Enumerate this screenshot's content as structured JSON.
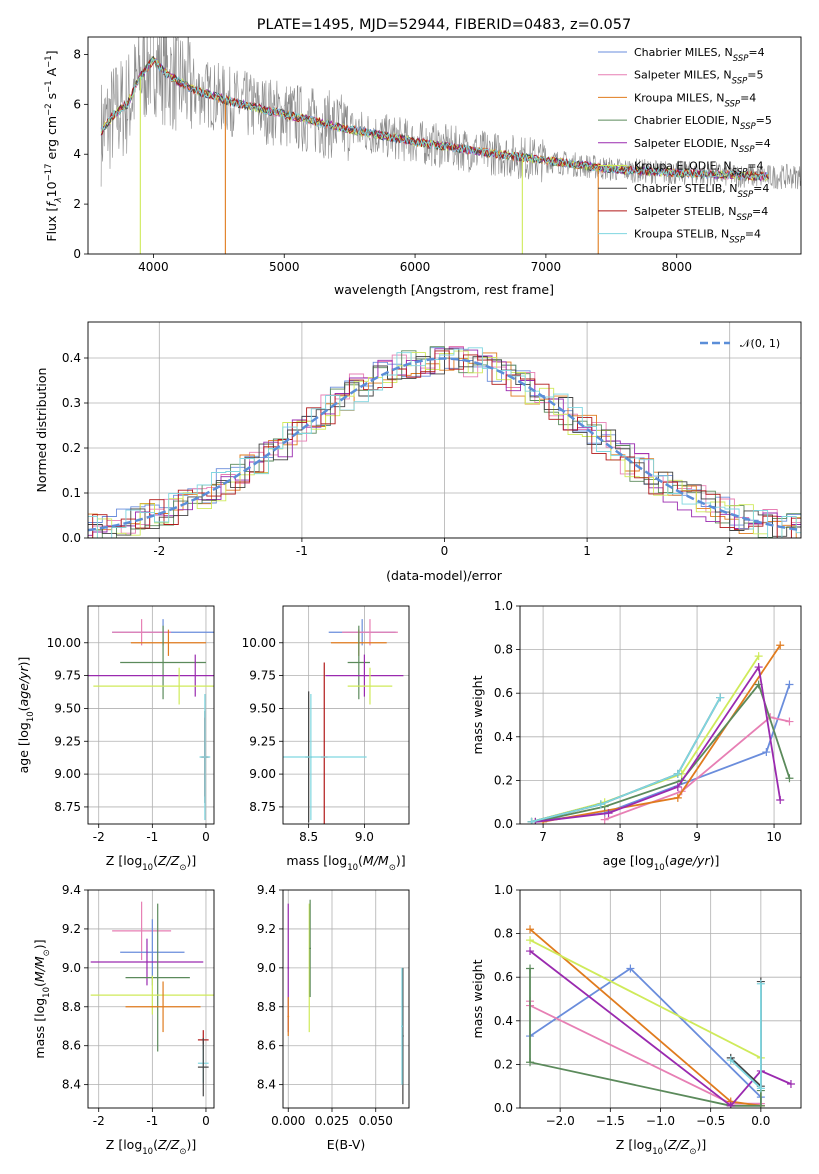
{
  "colors": {
    "chabrier_miles": "#6a8ddc",
    "salpeter_miles": "#e77fb4",
    "kroupa_miles": "#e07b1e",
    "chabrier_elodie": "#5b8a5b",
    "salpeter_elodie": "#9a2aaf",
    "kroupa_elodie": "#cfea5a",
    "chabrier_stelib": "#444444",
    "salpeter_stelib": "#b01818",
    "kroupa_stelib": "#7fd6e0",
    "data": "#8a8a8a"
  },
  "chart_data": [
    {
      "id": "spectrum",
      "type": "line",
      "title": "PLATE=1495, MJD=52944, FIBERID=0483, z=0.057",
      "xlabel": "wavelength [Angstrom, rest frame]",
      "ylabel": "Flux [f_λ10^-17 erg cm^-2 s^-1 A^-1]",
      "xlim": [
        3500,
        8950
      ],
      "ylim": [
        0,
        8.7
      ],
      "xticks": [
        4000,
        5000,
        6000,
        7000,
        8000
      ],
      "yticks": [
        0,
        2,
        4,
        6,
        8
      ],
      "legend": "top-right",
      "legend_entries": [
        {
          "key": "chabrier_miles",
          "base": "Chabrier MILES, N",
          "sub": "SSP",
          "tail": "=4"
        },
        {
          "key": "salpeter_miles",
          "base": "Salpeter MILES, N",
          "sub": "SSP",
          "tail": "=5"
        },
        {
          "key": "kroupa_miles",
          "base": "Kroupa MILES, N",
          "sub": "SSP",
          "tail": "=4"
        },
        {
          "key": "chabrier_elodie",
          "base": "Chabrier ELODIE, N",
          "sub": "SSP",
          "tail": "=5"
        },
        {
          "key": "salpeter_elodie",
          "base": "Salpeter ELODIE, N",
          "sub": "SSP",
          "tail": "=4"
        },
        {
          "key": "kroupa_elodie",
          "base": "Kroupa ELODIE, N",
          "sub": "SSP",
          "tail": "=4"
        },
        {
          "key": "chabrier_stelib",
          "base": "Chabrier STELIB, N",
          "sub": "SSP",
          "tail": "=4"
        },
        {
          "key": "salpeter_stelib",
          "base": "Salpeter STELIB, N",
          "sub": "SSP",
          "tail": "=4"
        },
        {
          "key": "kroupa_stelib",
          "base": "Kroupa STELIB, N",
          "sub": "SSP",
          "tail": "=4"
        }
      ],
      "model_continuum": [
        [
          3600,
          4.9
        ],
        [
          3700,
          5.6
        ],
        [
          3800,
          6.0
        ],
        [
          3900,
          7.1
        ],
        [
          4000,
          7.8
        ],
        [
          4100,
          7.2
        ],
        [
          4300,
          6.6
        ],
        [
          4600,
          6.1
        ],
        [
          5000,
          5.6
        ],
        [
          5500,
          5.0
        ],
        [
          6000,
          4.5
        ],
        [
          6500,
          4.1
        ],
        [
          7000,
          3.75
        ],
        [
          7500,
          3.4
        ],
        [
          8000,
          3.25
        ],
        [
          8500,
          3.15
        ],
        [
          8700,
          3.1
        ]
      ],
      "model_end": 8700
    },
    {
      "id": "residuals",
      "type": "line",
      "xlabel": "(data-model)/error",
      "ylabel": "Normed distribution",
      "xlim": [
        -2.5,
        2.5
      ],
      "ylim": [
        0,
        0.48
      ],
      "xticks": [
        -2,
        -1,
        0,
        1,
        2
      ],
      "yticks": [
        0.0,
        0.1,
        0.2,
        0.3,
        0.4
      ],
      "legend": "top-right",
      "legend_label": "𝒩(0, 1)",
      "reference": {
        "mean": 0,
        "sigma": 1
      }
    },
    {
      "id": "age_vs_Z",
      "type": "scatter",
      "xlabel": "Z [log10(Z/Z☉)]",
      "ylabel": "age  [log10(age/yr)]",
      "xlim": [
        -2.2,
        0.15
      ],
      "ylim": [
        8.62,
        10.28
      ],
      "xticks": [
        -2,
        -1,
        0
      ],
      "yticks": [
        8.75,
        9.0,
        9.25,
        9.5,
        9.75,
        10.0
      ],
      "points": [
        {
          "key": "chabrier_miles",
          "x": -0.8,
          "y": 10.08,
          "xerr": 0.95,
          "yerr": 0.1
        },
        {
          "key": "salpeter_miles",
          "x": -1.2,
          "y": 10.08,
          "xerr": 0.55,
          "yerr": 0.1
        },
        {
          "key": "kroupa_miles",
          "x": -0.7,
          "y": 10.0,
          "xerr": 0.7,
          "yerr": 0.1
        },
        {
          "key": "chabrier_elodie",
          "x": -0.8,
          "y": 9.85,
          "xerr": 0.8,
          "yerr": 0.28
        },
        {
          "key": "salpeter_elodie",
          "x": -0.2,
          "y": 9.75,
          "xerr": 2.05,
          "yerr": 0.16
        },
        {
          "key": "kroupa_elodie",
          "x": -0.5,
          "y": 9.67,
          "xerr": 1.6,
          "yerr": 0.14
        },
        {
          "key": "chabrier_stelib",
          "x": -0.02,
          "y": 9.13,
          "xerr": 0.08,
          "yerr": 0.35
        },
        {
          "key": "salpeter_stelib",
          "x": -0.02,
          "y": 9.13,
          "xerr": 0.06,
          "yerr": 0.3
        },
        {
          "key": "kroupa_stelib",
          "x": -0.02,
          "y": 9.13,
          "xerr": 0.1,
          "yerr": 0.48
        }
      ]
    },
    {
      "id": "age_vs_mass",
      "type": "scatter",
      "xlabel": "mass [log10(M/M☉)]",
      "ylabel": "",
      "xlim": [
        8.27,
        9.4
      ],
      "ylim": [
        8.62,
        10.28
      ],
      "xticks": [
        8.5,
        9.0
      ],
      "yticks": [
        8.75,
        9.0,
        9.25,
        9.5,
        9.75,
        10.0
      ],
      "points": [
        {
          "key": "chabrier_miles",
          "x": 8.98,
          "y": 10.08,
          "xerr": 0.3,
          "yerr": 0.1
        },
        {
          "key": "salpeter_miles",
          "x": 9.05,
          "y": 10.08,
          "xerr": 0.25,
          "yerr": 0.1
        },
        {
          "key": "kroupa_miles",
          "x": 8.95,
          "y": 10.0,
          "xerr": 0.25,
          "yerr": 0.1
        },
        {
          "key": "chabrier_elodie",
          "x": 8.95,
          "y": 9.85,
          "xerr": 0.1,
          "yerr": 0.28
        },
        {
          "key": "salpeter_elodie",
          "x": 9.0,
          "y": 9.75,
          "xerr": 0.35,
          "yerr": 0.16
        },
        {
          "key": "kroupa_elodie",
          "x": 9.05,
          "y": 9.67,
          "xerr": 0.2,
          "yerr": 0.14
        },
        {
          "key": "chabrier_stelib",
          "x": 8.5,
          "y": 9.13,
          "xerr": 0.03,
          "yerr": 0.5
        },
        {
          "key": "salpeter_stelib",
          "x": 8.64,
          "y": 9.13,
          "xerr": 0.03,
          "yerr": 0.72
        },
        {
          "key": "kroupa_stelib",
          "x": 8.52,
          "y": 9.13,
          "xerr": 0.5,
          "yerr": 0.48
        }
      ]
    },
    {
      "id": "weight_vs_age",
      "type": "line",
      "xlabel": "age  [log10(age/yr)]",
      "ylabel": "mass weight",
      "xlim": [
        6.7,
        10.35
      ],
      "ylim": [
        0,
        1.0
      ],
      "xticks": [
        7,
        8,
        9,
        10
      ],
      "yticks": [
        0.0,
        0.2,
        0.4,
        0.6,
        0.8,
        1.0
      ],
      "series": [
        {
          "key": "chabrier_miles",
          "x": [
            6.85,
            7.8,
            9.9,
            10.2
          ],
          "y": [
            0.01,
            0.05,
            0.33,
            0.64
          ]
        },
        {
          "key": "salpeter_miles",
          "x": [
            7.8,
            8.8,
            9.95,
            10.2
          ],
          "y": [
            0.02,
            0.15,
            0.49,
            0.47
          ]
        },
        {
          "key": "kroupa_miles",
          "x": [
            7.0,
            8.75,
            10.08
          ],
          "y": [
            0.01,
            0.12,
            0.82
          ]
        },
        {
          "key": "chabrier_elodie",
          "x": [
            6.9,
            7.8,
            8.8,
            9.8,
            10.2
          ],
          "y": [
            0.01,
            0.08,
            0.2,
            0.64,
            0.21
          ]
        },
        {
          "key": "salpeter_elodie",
          "x": [
            6.9,
            7.85,
            8.75,
            9.8,
            10.08
          ],
          "y": [
            0.01,
            0.05,
            0.17,
            0.72,
            0.11
          ]
        },
        {
          "key": "kroupa_elodie",
          "x": [
            6.85,
            7.8,
            8.8,
            9.8
          ],
          "y": [
            0.01,
            0.1,
            0.23,
            0.77
          ]
        },
        {
          "key": "chabrier_stelib",
          "x": [
            6.85,
            7.75,
            8.75,
            9.3
          ],
          "y": [
            0.01,
            0.09,
            0.23,
            0.58
          ]
        },
        {
          "key": "kroupa_stelib",
          "x": [
            6.85,
            7.75,
            8.75,
            9.3
          ],
          "y": [
            0.01,
            0.09,
            0.23,
            0.58
          ]
        }
      ]
    },
    {
      "id": "mass_vs_Z",
      "type": "scatter",
      "xlabel": "Z [log10(Z/Z☉)]",
      "ylabel": "mass [log10(M/M☉)]",
      "xlim": [
        -2.2,
        0.15
      ],
      "ylim": [
        8.28,
        9.4
      ],
      "xticks": [
        -2,
        -1,
        0
      ],
      "yticks": [
        8.4,
        8.6,
        8.8,
        9.0,
        9.2,
        9.4
      ],
      "points": [
        {
          "key": "salpeter_miles",
          "x": -1.2,
          "y": 9.19,
          "xerr": 0.55,
          "yerr": 0.15
        },
        {
          "key": "chabrier_miles",
          "x": -1.0,
          "y": 9.08,
          "xerr": 0.6,
          "yerr": 0.17
        },
        {
          "key": "salpeter_elodie",
          "x": -1.1,
          "y": 9.03,
          "xerr": 1.05,
          "yerr": 0.12
        },
        {
          "key": "chabrier_elodie",
          "x": -0.9,
          "y": 8.95,
          "xerr": 0.6,
          "yerr": 0.38
        },
        {
          "key": "kroupa_elodie",
          "x": -1.0,
          "y": 8.86,
          "xerr": 1.15,
          "yerr": 0.1
        },
        {
          "key": "kroupa_miles",
          "x": -0.8,
          "y": 8.8,
          "xerr": 0.7,
          "yerr": 0.13
        },
        {
          "key": "salpeter_stelib",
          "x": -0.05,
          "y": 8.63,
          "xerr": 0.1,
          "yerr": 0.05
        },
        {
          "key": "kroupa_stelib",
          "x": -0.05,
          "y": 8.51,
          "xerr": 0.1,
          "yerr": 0.1
        },
        {
          "key": "chabrier_stelib",
          "x": -0.05,
          "y": 8.49,
          "xerr": 0.1,
          "yerr": 0.15
        }
      ]
    },
    {
      "id": "mass_vs_ebv",
      "type": "scatter",
      "xlabel": "E(B-V)",
      "ylabel": "",
      "xlim": [
        -0.003,
        0.069
      ],
      "ylim": [
        8.28,
        9.4
      ],
      "xticks": [
        0.0,
        0.025,
        0.05
      ],
      "yticks": [
        8.4,
        8.6,
        8.8,
        9.0,
        9.2,
        9.4
      ],
      "points": [
        {
          "key": "salpeter_elodie",
          "x": 0.0,
          "y": 9.0,
          "xerr": 0.0005,
          "yerr": 0.33
        },
        {
          "key": "kroupa_miles",
          "x": 0.0,
          "y": 8.75,
          "xerr": 0.0005,
          "yerr": 0.1
        },
        {
          "key": "kroupa_elodie",
          "x": 0.012,
          "y": 9.0,
          "xerr": 0.0005,
          "yerr": 0.33
        },
        {
          "key": "chabrier_elodie",
          "x": 0.0125,
          "y": 9.1,
          "xerr": 0.0005,
          "yerr": 0.25
        },
        {
          "key": "chabrier_stelib",
          "x": 0.0655,
          "y": 8.65,
          "xerr": 0.0005,
          "yerr": 0.35
        },
        {
          "key": "kroupa_stelib",
          "x": 0.065,
          "y": 8.7,
          "xerr": 0.0005,
          "yerr": 0.3
        }
      ]
    },
    {
      "id": "weight_vs_Z",
      "type": "line",
      "xlabel": "Z [log10(Z/Z☉)]",
      "ylabel": "mass weight",
      "xlim": [
        -2.4,
        0.4
      ],
      "ylim": [
        0,
        1.0
      ],
      "xticks": [
        -2.0,
        -1.5,
        -1.0,
        -0.5,
        0.0
      ],
      "yticks": [
        0.0,
        0.2,
        0.4,
        0.6,
        0.8,
        1.0
      ],
      "series": [
        {
          "key": "chabrier_miles",
          "x": [
            -2.3,
            -1.3,
            0.0,
            0.0
          ],
          "y": [
            0.33,
            0.64,
            0.05,
            0.01
          ]
        },
        {
          "key": "salpeter_miles",
          "x": [
            -2.3,
            -2.3,
            -0.3,
            0.0
          ],
          "y": [
            0.49,
            0.47,
            0.02,
            0.02
          ]
        },
        {
          "key": "kroupa_miles",
          "x": [
            -2.3,
            -0.3,
            0.0
          ],
          "y": [
            0.82,
            0.03,
            0.01
          ]
        },
        {
          "key": "chabrier_elodie",
          "x": [
            -2.3,
            -2.3,
            -0.3,
            0.0,
            0.0
          ],
          "y": [
            0.64,
            0.21,
            0.01,
            0.01,
            0.08
          ]
        },
        {
          "key": "salpeter_elodie",
          "x": [
            -2.3,
            -0.3,
            0.0,
            0.3
          ],
          "y": [
            0.72,
            0.01,
            0.17,
            0.11
          ]
        },
        {
          "key": "kroupa_elodie",
          "x": [
            -2.3,
            0.0
          ],
          "y": [
            0.77,
            0.23
          ]
        },
        {
          "key": "chabrier_stelib",
          "x": [
            -0.3,
            0.0,
            0.0
          ],
          "y": [
            0.23,
            0.1,
            0.58
          ]
        },
        {
          "key": "kroupa_stelib",
          "x": [
            -0.3,
            0.0,
            0.0
          ],
          "y": [
            0.22,
            0.09,
            0.57
          ]
        }
      ]
    }
  ]
}
